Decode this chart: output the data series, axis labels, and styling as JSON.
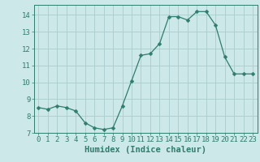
{
  "x": [
    0,
    1,
    2,
    3,
    4,
    5,
    6,
    7,
    8,
    9,
    10,
    11,
    12,
    13,
    14,
    15,
    16,
    17,
    18,
    19,
    20,
    21,
    22,
    23
  ],
  "y": [
    8.5,
    8.4,
    8.6,
    8.5,
    8.3,
    7.6,
    7.3,
    7.2,
    7.3,
    8.6,
    10.1,
    11.6,
    11.7,
    12.3,
    13.9,
    13.9,
    13.7,
    14.2,
    14.2,
    13.4,
    11.5,
    10.5,
    10.5,
    10.5
  ],
  "line_color": "#2e7d6e",
  "marker": "D",
  "marker_size": 2.5,
  "bg_color": "#cce8e8",
  "grid_color": "#aacccc",
  "xlabel": "Humidex (Indice chaleur)",
  "xlim": [
    -0.5,
    23.5
  ],
  "ylim": [
    7,
    14.6
  ],
  "yticks": [
    7,
    8,
    9,
    10,
    11,
    12,
    13,
    14
  ],
  "xticks": [
    0,
    1,
    2,
    3,
    4,
    5,
    6,
    7,
    8,
    9,
    10,
    11,
    12,
    13,
    14,
    15,
    16,
    17,
    18,
    19,
    20,
    21,
    22,
    23
  ],
  "tick_color": "#2e7d6e",
  "label_color": "#2e7d6e",
  "spine_color": "#2e7d6e",
  "tick_fontsize": 6.5,
  "xlabel_fontsize": 7.5
}
